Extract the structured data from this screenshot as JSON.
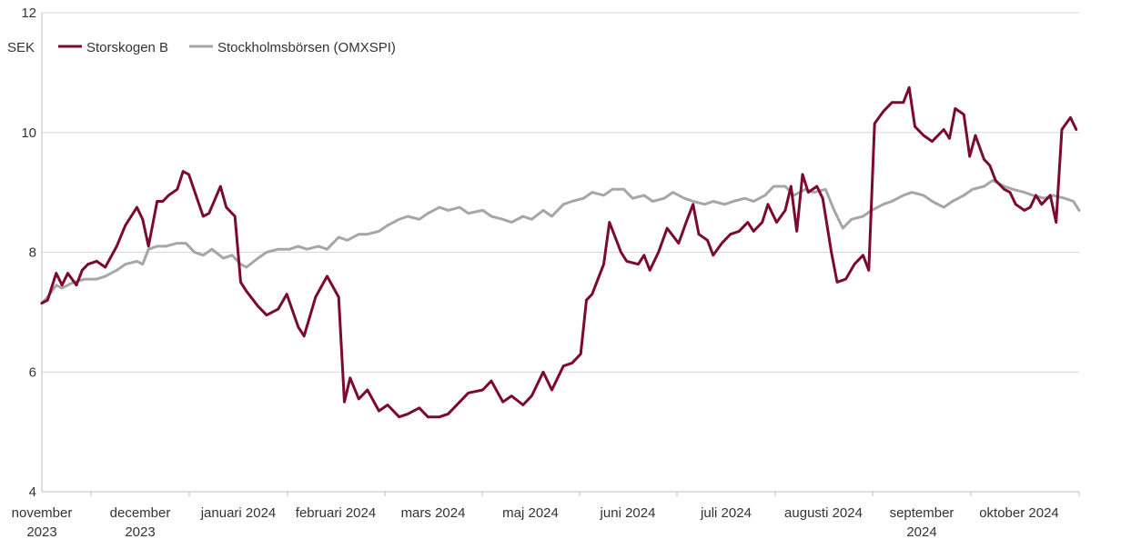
{
  "chart_data": {
    "type": "line",
    "ylabel": "SEK",
    "ylim": [
      4,
      12
    ],
    "yticks": [
      4,
      6,
      8,
      10,
      12
    ],
    "grid": "horizontal",
    "legend_position": "top-left",
    "x_tick_labels": [
      {
        "line1": "november",
        "line2": "2023"
      },
      {
        "line1": "december",
        "line2": "2023"
      },
      {
        "line1": "januari 2024",
        "line2": ""
      },
      {
        "line1": "februari 2024",
        "line2": ""
      },
      {
        "line1": "mars 2024",
        "line2": ""
      },
      {
        "line1": "maj 2024",
        "line2": ""
      },
      {
        "line1": "juni 2024",
        "line2": ""
      },
      {
        "line1": "juli 2024",
        "line2": ""
      },
      {
        "line1": "augusti 2024",
        "line2": ""
      },
      {
        "line1": "september",
        "line2": "2024"
      },
      {
        "line1": "oktober 2024",
        "line2": ""
      }
    ],
    "series": [
      {
        "name": "Storskogen B",
        "color": "#7a0a2e",
        "points": [
          [
            "2023-11-01",
            7.15
          ],
          [
            "2023-11-03",
            7.2
          ],
          [
            "2023-11-06",
            7.65
          ],
          [
            "2023-11-08",
            7.45
          ],
          [
            "2023-11-10",
            7.65
          ],
          [
            "2023-11-13",
            7.45
          ],
          [
            "2023-11-15",
            7.7
          ],
          [
            "2023-11-17",
            7.8
          ],
          [
            "2023-11-20",
            7.85
          ],
          [
            "2023-11-23",
            7.75
          ],
          [
            "2023-11-27",
            8.1
          ],
          [
            "2023-11-30",
            8.45
          ],
          [
            "2023-12-04",
            8.75
          ],
          [
            "2023-12-06",
            8.55
          ],
          [
            "2023-12-08",
            8.1
          ],
          [
            "2023-12-11",
            8.85
          ],
          [
            "2023-12-13",
            8.85
          ],
          [
            "2023-12-15",
            8.95
          ],
          [
            "2023-12-18",
            9.05
          ],
          [
            "2023-12-20",
            9.35
          ],
          [
            "2023-12-22",
            9.3
          ],
          [
            "2023-12-27",
            8.6
          ],
          [
            "2023-12-29",
            8.65
          ],
          [
            "2024-01-02",
            9.1
          ],
          [
            "2024-01-04",
            8.75
          ],
          [
            "2024-01-07",
            8.6
          ],
          [
            "2024-01-09",
            7.5
          ],
          [
            "2024-01-11",
            7.35
          ],
          [
            "2024-01-15",
            7.1
          ],
          [
            "2024-01-18",
            6.95
          ],
          [
            "2024-01-22",
            7.05
          ],
          [
            "2024-01-25",
            7.3
          ],
          [
            "2024-01-29",
            6.75
          ],
          [
            "2024-01-31",
            6.6
          ],
          [
            "2024-02-04",
            7.25
          ],
          [
            "2024-02-08",
            7.6
          ],
          [
            "2024-02-12",
            7.25
          ],
          [
            "2024-02-14",
            5.5
          ],
          [
            "2024-02-16",
            5.9
          ],
          [
            "2024-02-19",
            5.55
          ],
          [
            "2024-02-22",
            5.7
          ],
          [
            "2024-02-26",
            5.35
          ],
          [
            "2024-02-29",
            5.45
          ],
          [
            "2024-03-04",
            5.25
          ],
          [
            "2024-03-07",
            5.3
          ],
          [
            "2024-03-11",
            5.4
          ],
          [
            "2024-03-14",
            5.25
          ],
          [
            "2024-03-18",
            5.25
          ],
          [
            "2024-03-21",
            5.3
          ],
          [
            "2024-03-25",
            5.5
          ],
          [
            "2024-03-28",
            5.65
          ],
          [
            "2024-04-02",
            5.7
          ],
          [
            "2024-04-05",
            5.85
          ],
          [
            "2024-04-09",
            5.5
          ],
          [
            "2024-04-12",
            5.6
          ],
          [
            "2024-04-16",
            5.45
          ],
          [
            "2024-04-19",
            5.6
          ],
          [
            "2024-04-23",
            6.0
          ],
          [
            "2024-04-26",
            5.7
          ],
          [
            "2024-04-30",
            6.1
          ],
          [
            "2024-05-03",
            6.15
          ],
          [
            "2024-05-06",
            6.3
          ],
          [
            "2024-05-08",
            7.2
          ],
          [
            "2024-05-10",
            7.3
          ],
          [
            "2024-05-14",
            7.8
          ],
          [
            "2024-05-16",
            8.5
          ],
          [
            "2024-05-20",
            8.0
          ],
          [
            "2024-05-22",
            7.85
          ],
          [
            "2024-05-26",
            7.8
          ],
          [
            "2024-05-28",
            7.95
          ],
          [
            "2024-05-30",
            7.7
          ],
          [
            "2024-06-02",
            8.0
          ],
          [
            "2024-06-05",
            8.4
          ],
          [
            "2024-06-09",
            8.15
          ],
          [
            "2024-06-12",
            8.55
          ],
          [
            "2024-06-14",
            8.8
          ],
          [
            "2024-06-16",
            8.3
          ],
          [
            "2024-06-19",
            8.2
          ],
          [
            "2024-06-21",
            7.95
          ],
          [
            "2024-06-24",
            8.15
          ],
          [
            "2024-06-27",
            8.3
          ],
          [
            "2024-06-30",
            8.35
          ],
          [
            "2024-07-03",
            8.5
          ],
          [
            "2024-07-05",
            8.35
          ],
          [
            "2024-07-08",
            8.5
          ],
          [
            "2024-07-10",
            8.8
          ],
          [
            "2024-07-13",
            8.5
          ],
          [
            "2024-07-16",
            8.7
          ],
          [
            "2024-07-18",
            9.1
          ],
          [
            "2024-07-20",
            8.35
          ],
          [
            "2024-07-22",
            9.3
          ],
          [
            "2024-07-24",
            9.0
          ],
          [
            "2024-07-27",
            9.1
          ],
          [
            "2024-07-29",
            8.9
          ],
          [
            "2024-08-01",
            8.0
          ],
          [
            "2024-08-03",
            7.5
          ],
          [
            "2024-08-06",
            7.55
          ],
          [
            "2024-08-09",
            7.8
          ],
          [
            "2024-08-12",
            7.95
          ],
          [
            "2024-08-14",
            7.7
          ],
          [
            "2024-08-16",
            10.15
          ],
          [
            "2024-08-19",
            10.35
          ],
          [
            "2024-08-22",
            10.5
          ],
          [
            "2024-08-26",
            10.5
          ],
          [
            "2024-08-28",
            10.75
          ],
          [
            "2024-08-30",
            10.1
          ],
          [
            "2024-09-02",
            9.95
          ],
          [
            "2024-09-05",
            9.85
          ],
          [
            "2024-09-09",
            10.05
          ],
          [
            "2024-09-11",
            9.9
          ],
          [
            "2024-09-13",
            10.4
          ],
          [
            "2024-09-16",
            10.3
          ],
          [
            "2024-09-18",
            9.6
          ],
          [
            "2024-09-20",
            9.95
          ],
          [
            "2024-09-23",
            9.55
          ],
          [
            "2024-09-25",
            9.45
          ],
          [
            "2024-09-27",
            9.2
          ],
          [
            "2024-09-30",
            9.05
          ],
          [
            "2024-10-02",
            9.0
          ],
          [
            "2024-10-04",
            8.8
          ],
          [
            "2024-10-07",
            8.7
          ],
          [
            "2024-10-09",
            8.75
          ],
          [
            "2024-10-11",
            8.95
          ],
          [
            "2024-10-13",
            8.8
          ],
          [
            "2024-10-16",
            8.95
          ],
          [
            "2024-10-18",
            8.5
          ],
          [
            "2024-10-20",
            10.05
          ],
          [
            "2024-10-23",
            10.25
          ],
          [
            "2024-10-25",
            10.05
          ]
        ]
      },
      {
        "name": "Stockholmsbörsen (OMXSPI)",
        "color": "#a6a6a6",
        "points": [
          [
            "2023-11-01",
            7.15
          ],
          [
            "2023-11-03",
            7.25
          ],
          [
            "2023-11-06",
            7.45
          ],
          [
            "2023-11-08",
            7.4
          ],
          [
            "2023-11-12",
            7.5
          ],
          [
            "2023-11-16",
            7.55
          ],
          [
            "2023-11-20",
            7.55
          ],
          [
            "2023-11-23",
            7.6
          ],
          [
            "2023-11-27",
            7.7
          ],
          [
            "2023-11-30",
            7.8
          ],
          [
            "2023-12-04",
            7.85
          ],
          [
            "2023-12-06",
            7.8
          ],
          [
            "2023-12-08",
            8.05
          ],
          [
            "2023-12-11",
            8.1
          ],
          [
            "2023-12-14",
            8.1
          ],
          [
            "2023-12-18",
            8.15
          ],
          [
            "2023-12-21",
            8.15
          ],
          [
            "2023-12-24",
            8.0
          ],
          [
            "2023-12-27",
            7.95
          ],
          [
            "2023-12-30",
            8.05
          ],
          [
            "2024-01-03",
            7.9
          ],
          [
            "2024-01-06",
            7.95
          ],
          [
            "2024-01-09",
            7.8
          ],
          [
            "2024-01-11",
            7.75
          ],
          [
            "2024-01-15",
            7.9
          ],
          [
            "2024-01-18",
            8.0
          ],
          [
            "2024-01-22",
            8.05
          ],
          [
            "2024-01-26",
            8.05
          ],
          [
            "2024-01-29",
            8.1
          ],
          [
            "2024-02-01",
            8.05
          ],
          [
            "2024-02-05",
            8.1
          ],
          [
            "2024-02-08",
            8.05
          ],
          [
            "2024-02-12",
            8.25
          ],
          [
            "2024-02-15",
            8.2
          ],
          [
            "2024-02-19",
            8.3
          ],
          [
            "2024-02-22",
            8.3
          ],
          [
            "2024-02-26",
            8.35
          ],
          [
            "2024-02-29",
            8.45
          ],
          [
            "2024-03-04",
            8.55
          ],
          [
            "2024-03-07",
            8.6
          ],
          [
            "2024-03-11",
            8.55
          ],
          [
            "2024-03-14",
            8.65
          ],
          [
            "2024-03-18",
            8.75
          ],
          [
            "2024-03-21",
            8.7
          ],
          [
            "2024-03-25",
            8.75
          ],
          [
            "2024-03-28",
            8.65
          ],
          [
            "2024-04-02",
            8.7
          ],
          [
            "2024-04-05",
            8.6
          ],
          [
            "2024-04-09",
            8.55
          ],
          [
            "2024-04-12",
            8.5
          ],
          [
            "2024-04-16",
            8.6
          ],
          [
            "2024-04-19",
            8.55
          ],
          [
            "2024-04-23",
            8.7
          ],
          [
            "2024-04-26",
            8.6
          ],
          [
            "2024-04-30",
            8.8
          ],
          [
            "2024-05-03",
            8.85
          ],
          [
            "2024-05-07",
            8.9
          ],
          [
            "2024-05-10",
            9.0
          ],
          [
            "2024-05-14",
            8.95
          ],
          [
            "2024-05-17",
            9.05
          ],
          [
            "2024-05-21",
            9.05
          ],
          [
            "2024-05-24",
            8.9
          ],
          [
            "2024-05-28",
            8.95
          ],
          [
            "2024-05-31",
            8.85
          ],
          [
            "2024-06-04",
            8.9
          ],
          [
            "2024-06-07",
            9.0
          ],
          [
            "2024-06-11",
            8.9
          ],
          [
            "2024-06-14",
            8.85
          ],
          [
            "2024-06-18",
            8.8
          ],
          [
            "2024-06-21",
            8.85
          ],
          [
            "2024-06-25",
            8.8
          ],
          [
            "2024-06-28",
            8.85
          ],
          [
            "2024-07-02",
            8.9
          ],
          [
            "2024-07-05",
            8.85
          ],
          [
            "2024-07-09",
            8.95
          ],
          [
            "2024-07-12",
            9.1
          ],
          [
            "2024-07-16",
            9.1
          ],
          [
            "2024-07-19",
            8.95
          ],
          [
            "2024-07-23",
            9.05
          ],
          [
            "2024-07-26",
            9.0
          ],
          [
            "2024-07-30",
            9.05
          ],
          [
            "2024-08-02",
            8.7
          ],
          [
            "2024-08-05",
            8.4
          ],
          [
            "2024-08-08",
            8.55
          ],
          [
            "2024-08-12",
            8.6
          ],
          [
            "2024-08-15",
            8.7
          ],
          [
            "2024-08-19",
            8.8
          ],
          [
            "2024-08-22",
            8.85
          ],
          [
            "2024-08-26",
            8.95
          ],
          [
            "2024-08-29",
            9.0
          ],
          [
            "2024-09-02",
            8.95
          ],
          [
            "2024-09-05",
            8.85
          ],
          [
            "2024-09-09",
            8.75
          ],
          [
            "2024-09-12",
            8.85
          ],
          [
            "2024-09-16",
            8.95
          ],
          [
            "2024-09-19",
            9.05
          ],
          [
            "2024-09-23",
            9.1
          ],
          [
            "2024-09-26",
            9.2
          ],
          [
            "2024-09-30",
            9.1
          ],
          [
            "2024-10-03",
            9.05
          ],
          [
            "2024-10-07",
            9.0
          ],
          [
            "2024-10-10",
            8.95
          ],
          [
            "2024-10-14",
            8.9
          ],
          [
            "2024-10-17",
            8.95
          ],
          [
            "2024-10-21",
            8.9
          ],
          [
            "2024-10-24",
            8.85
          ],
          [
            "2024-10-26",
            8.7
          ]
        ]
      }
    ]
  }
}
